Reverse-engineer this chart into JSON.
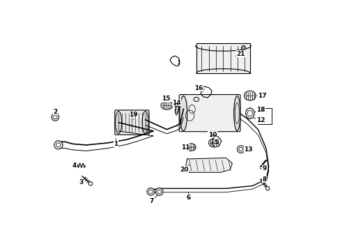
{
  "bg": "#ffffff",
  "lc": "#000000",
  "fig_w": 4.89,
  "fig_h": 3.6,
  "dpi": 100,
  "labels": [
    [
      "1",
      135,
      198,
      135,
      212
    ],
    [
      "2",
      22,
      165,
      22,
      152
    ],
    [
      "3",
      82,
      272,
      70,
      283
    ],
    [
      "4",
      70,
      252,
      58,
      252
    ],
    [
      "5",
      310,
      210,
      322,
      210
    ],
    [
      "6",
      270,
      298,
      270,
      312
    ],
    [
      "7",
      215,
      305,
      202,
      318
    ],
    [
      "8",
      400,
      278,
      412,
      278
    ],
    [
      "9",
      400,
      258,
      412,
      258
    ],
    [
      "10",
      315,
      208,
      315,
      195
    ],
    [
      "11",
      278,
      218,
      265,
      218
    ],
    [
      "12",
      388,
      162,
      405,
      168
    ],
    [
      "13",
      368,
      222,
      382,
      222
    ],
    [
      "14",
      248,
      148,
      248,
      135
    ],
    [
      "15",
      228,
      140,
      228,
      128
    ],
    [
      "16",
      300,
      118,
      290,
      108
    ],
    [
      "17",
      395,
      122,
      408,
      122
    ],
    [
      "18",
      388,
      155,
      405,
      148
    ],
    [
      "19",
      168,
      170,
      168,
      158
    ],
    [
      "20",
      275,
      248,
      262,
      260
    ],
    [
      "21",
      355,
      50,
      368,
      44
    ]
  ]
}
